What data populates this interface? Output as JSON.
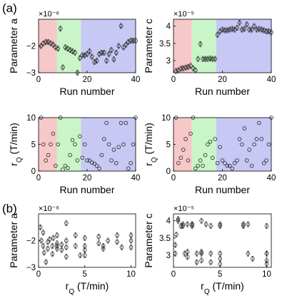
{
  "panel_labels": [
    "(a)",
    "(b)"
  ],
  "colors": {
    "region_red": "#f7c8c8",
    "region_green": "#c9f5c9",
    "region_blue": "#c8c8f4",
    "marker": "#1a1a1a",
    "axis": "#000000"
  },
  "chart_data": [
    {
      "id": "a1",
      "type": "scatter",
      "xlabel": "Run number",
      "ylabel": "Parameter a",
      "exponent_label": "×10⁻⁶",
      "xlim": [
        0,
        40
      ],
      "ylim": [
        -3.0,
        -1.0
      ],
      "xticks": [
        0,
        20,
        40
      ],
      "yticks": [
        -2,
        -3
      ],
      "regions": [
        {
          "color": "red",
          "x": [
            0,
            7.5
          ]
        },
        {
          "color": "green",
          "x": [
            7.5,
            17.5
          ]
        },
        {
          "color": "blue",
          "x": [
            17.5,
            40
          ]
        }
      ],
      "error_bars": true,
      "x": [
        1,
        2,
        3,
        4,
        5,
        6,
        7,
        8,
        9,
        10,
        11,
        12,
        13,
        14,
        15,
        16,
        17,
        18,
        19,
        20,
        21,
        22,
        23,
        24,
        25,
        26,
        27,
        28,
        29,
        30,
        31,
        32,
        33,
        34,
        35,
        36,
        37,
        38,
        39,
        40
      ],
      "y": [
        -2.0,
        -1.9,
        -1.85,
        -1.85,
        -1.9,
        -1.95,
        -2.05,
        -2.1,
        -1.35,
        -2.8,
        -2.05,
        -2.1,
        -2.15,
        -2.2,
        -2.25,
        -3.0,
        -2.45,
        -2.35,
        -2.35,
        -2.3,
        -2.2,
        -2.4,
        -2.6,
        -2.55,
        -2.3,
        -2.25,
        -2.25,
        -2.55,
        -2.3,
        -2.15,
        -2.5,
        -2.25,
        -2.0,
        -1.25,
        -2.05,
        -1.95,
        -1.85,
        -1.8,
        -1.8,
        -1.8
      ]
    },
    {
      "id": "c1",
      "type": "scatter",
      "xlabel": "Run number",
      "ylabel": "Parameter c",
      "exponent_label": "×10⁻⁵",
      "xlim": [
        0,
        40
      ],
      "ylim": [
        2.65,
        4.2
      ],
      "xticks": [
        0,
        20,
        40
      ],
      "yticks": [
        3,
        3.5,
        4
      ],
      "regions": [
        {
          "color": "red",
          "x": [
            0,
            7.5
          ]
        },
        {
          "color": "green",
          "x": [
            7.5,
            17.5
          ]
        },
        {
          "color": "blue",
          "x": [
            17.5,
            40
          ]
        }
      ],
      "error_bars": true,
      "x": [
        1,
        2,
        3,
        4,
        5,
        6,
        7,
        8,
        9,
        10,
        11,
        12,
        13,
        14,
        15,
        16,
        17,
        18,
        19,
        20,
        21,
        22,
        23,
        24,
        25,
        26,
        27,
        28,
        29,
        30,
        31,
        32,
        33,
        34,
        35,
        36,
        37,
        38,
        39,
        40
      ],
      "y": [
        2.7,
        2.72,
        2.77,
        2.78,
        2.8,
        2.82,
        2.85,
        2.78,
        2.72,
        3.05,
        3.48,
        3.05,
        3.05,
        3.05,
        3.06,
        3.05,
        3.05,
        3.75,
        3.85,
        3.9,
        3.88,
        3.88,
        3.9,
        3.92,
        3.9,
        3.95,
        4.1,
        3.9,
        3.92,
        4.05,
        3.9,
        3.9,
        4.0,
        3.9,
        3.92,
        3.9,
        3.88,
        3.85,
        3.85,
        3.82
      ]
    },
    {
      "id": "r1",
      "type": "scatter",
      "xlabel": "Run number",
      "ylabel": "r",
      "ylabel_sub": "Q",
      "ylabel_unit": " (T/min)",
      "xlim": [
        0,
        40
      ],
      "ylim": [
        0,
        10
      ],
      "xticks": [
        0,
        20,
        40
      ],
      "yticks": [
        0,
        5,
        10
      ],
      "regions": [
        {
          "color": "red",
          "x": [
            0,
            7.5
          ]
        },
        {
          "color": "green",
          "x": [
            7.5,
            17.5
          ]
        },
        {
          "color": "blue",
          "x": [
            17.5,
            40
          ]
        }
      ],
      "error_bars": false,
      "x": [
        1,
        2,
        3,
        4,
        5,
        6,
        7,
        8,
        9,
        10,
        11,
        12,
        13,
        14,
        15,
        16,
        17,
        18,
        19,
        20,
        21,
        22,
        23,
        24,
        25,
        26,
        27,
        28,
        29,
        30,
        31,
        32,
        33,
        34,
        35,
        36,
        37,
        38,
        39,
        40
      ],
      "y": [
        10,
        5,
        2,
        3,
        5,
        7,
        1,
        5,
        10,
        0.3,
        1,
        0.6,
        3,
        5.8,
        5,
        2,
        6.5,
        2.5,
        5,
        2,
        2,
        1.6,
        1.4,
        1,
        0.5,
        3,
        6,
        9,
        5,
        2,
        4,
        1.5,
        4.5,
        9,
        5,
        9,
        0.5,
        1.5,
        5,
        10
      ]
    },
    {
      "id": "r2",
      "type": "scatter",
      "xlabel": "Run number",
      "ylabel": "r",
      "ylabel_sub": "Q",
      "ylabel_unit": " (T/min)",
      "xlim": [
        0,
        40
      ],
      "ylim": [
        0,
        10
      ],
      "xticks": [
        0,
        20,
        40
      ],
      "yticks": [
        0,
        5,
        10
      ],
      "regions": [
        {
          "color": "red",
          "x": [
            0,
            7.5
          ]
        },
        {
          "color": "green",
          "x": [
            7.5,
            17.5
          ]
        },
        {
          "color": "blue",
          "x": [
            17.5,
            40
          ]
        }
      ],
      "error_bars": false,
      "x": [
        1,
        2,
        3,
        4,
        5,
        6,
        7,
        8,
        9,
        10,
        11,
        12,
        13,
        14,
        15,
        16,
        17,
        18,
        19,
        20,
        21,
        22,
        23,
        24,
        25,
        26,
        27,
        28,
        29,
        30,
        31,
        32,
        33,
        34,
        35,
        36,
        37,
        38,
        39,
        40
      ],
      "y": [
        10,
        1.5,
        2.5,
        4,
        6,
        2,
        7,
        10,
        0.5,
        1,
        2,
        1,
        3,
        5,
        5.5,
        2.5,
        6,
        1.5,
        4.5,
        2,
        1.5,
        1,
        1,
        0.5,
        1.5,
        2,
        6,
        5,
        8,
        2,
        4,
        1,
        5,
        6,
        9,
        6,
        1.5,
        2,
        5,
        10
      ]
    },
    {
      "id": "b1",
      "type": "scatter",
      "xlabel": "r",
      "xlabel_sub": "Q",
      "xlabel_unit": " (T/min)",
      "ylabel": "Parameter a",
      "exponent_label": "×10⁻⁶",
      "xlim": [
        0,
        10.5
      ],
      "ylim": [
        -3.0,
        -1.0
      ],
      "xticks": [
        0,
        5,
        10
      ],
      "yticks": [
        -2,
        -3
      ],
      "error_bars": true,
      "x": [
        0.2,
        0.3,
        0.5,
        0.5,
        0.6,
        0.8,
        1.0,
        1.0,
        1.2,
        1.5,
        1.5,
        1.6,
        2.0,
        2.0,
        2.0,
        2.0,
        2.5,
        2.5,
        3.0,
        3.0,
        3.0,
        3.0,
        4.0,
        4.0,
        4.5,
        5.0,
        5.0,
        5.0,
        5.0,
        6.5,
        6.5,
        7.0,
        7.0,
        7.5,
        8.5,
        8.5,
        9.0,
        10.0,
        10.0,
        10.0
      ],
      "y": [
        -1.5,
        -2.0,
        -1.7,
        -2.2,
        -2.45,
        -2.8,
        -2.3,
        -2.05,
        -1.95,
        -2.5,
        -2.2,
        -1.9,
        -1.8,
        -2.1,
        -2.2,
        -2.3,
        -2.35,
        -2.15,
        -1.35,
        -2.0,
        -2.25,
        -2.6,
        -1.8,
        -2.2,
        -2.55,
        -1.9,
        -2.2,
        -2.35,
        -2.55,
        -1.85,
        -2.1,
        -2.2,
        -2.3,
        -2.0,
        -1.8,
        -2.05,
        -2.25,
        -1.8,
        -2.0,
        -2.25
      ]
    },
    {
      "id": "b2",
      "type": "scatter",
      "xlabel": "r",
      "xlabel_sub": "Q",
      "xlabel_unit": " (T/min)",
      "ylabel": "Parameter c",
      "exponent_label": "×10⁻⁵",
      "xlim": [
        0,
        10.5
      ],
      "ylim": [
        2.65,
        4.2
      ],
      "xticks": [
        0,
        5,
        10
      ],
      "yticks": [
        3,
        3.5,
        4
      ],
      "error_bars": true,
      "x": [
        0.2,
        0.2,
        0.3,
        0.5,
        0.5,
        0.8,
        1.0,
        1.0,
        1.2,
        1.5,
        1.5,
        1.5,
        2.0,
        2.0,
        2.0,
        2.5,
        2.5,
        3.0,
        3.0,
        3.0,
        3.0,
        3.5,
        4.0,
        4.0,
        4.0,
        5.0,
        5.0,
        5.0,
        5.0,
        5.0,
        7.5,
        7.5,
        8.0,
        8.0,
        8.5,
        10.0,
        10.0,
        10.0,
        10.0,
        10.0
      ],
      "y": [
        3.05,
        3.3,
        3.6,
        4.05,
        4.0,
        3.85,
        3.9,
        3.85,
        3.05,
        2.95,
        3.1,
        3.9,
        3.9,
        3.85,
        3.9,
        3.05,
        2.8,
        4.0,
        3.1,
        2.85,
        3.05,
        3.9,
        3.85,
        3.05,
        2.8,
        3.9,
        3.85,
        2.75,
        2.9,
        3.05,
        3.9,
        3.85,
        3.9,
        3.05,
        2.9,
        3.05,
        3.05,
        3.85,
        2.85,
        2.75
      ]
    }
  ]
}
